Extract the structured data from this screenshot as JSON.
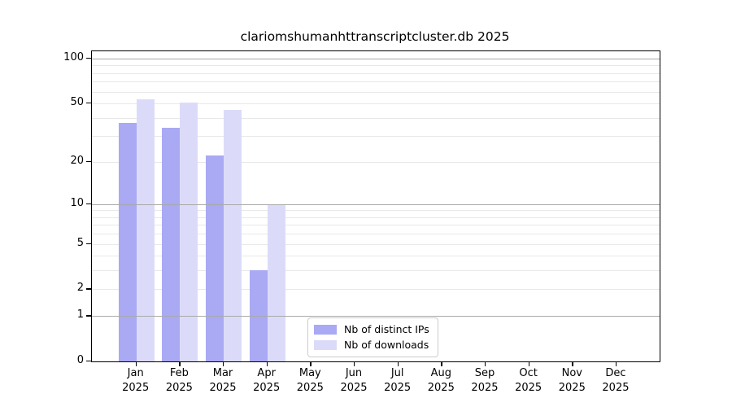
{
  "figure": {
    "title": "clariomshumanhttranscriptcluster.db 2025"
  },
  "chart_data": {
    "type": "bar",
    "title": "clariomshumanhttranscriptcluster.db 2025",
    "x": {
      "categories": [
        "Jan",
        "Feb",
        "Mar",
        "Apr",
        "May",
        "Jun",
        "Jul",
        "Aug",
        "Sep",
        "Oct",
        "Nov",
        "Dec"
      ],
      "year_label": "2025"
    },
    "series": [
      {
        "name": "Nb of distinct IPs",
        "color": "#a9a9f4",
        "values": [
          37,
          34,
          22,
          3,
          0,
          0,
          0,
          0,
          0,
          0,
          0,
          0
        ]
      },
      {
        "name": "Nb of downloads",
        "color": "#dbdbf9",
        "values": [
          53,
          51,
          45,
          10,
          0,
          0,
          0,
          0,
          0,
          0,
          0,
          0
        ]
      }
    ],
    "y_axis": {
      "scale": "log10(1+v)",
      "tick_labels": [
        100,
        50,
        20,
        10,
        5,
        2,
        1,
        0
      ],
      "dark_gridlines": [
        100,
        10,
        1
      ],
      "minor_gridlines": [
        90,
        80,
        70,
        60,
        40,
        30,
        9,
        8,
        7,
        6,
        4,
        3
      ],
      "ylim": [
        0,
        101
      ]
    },
    "legend_position": "bottom-center-inside",
    "grid": true,
    "colors": {
      "grid_light": "#e8e8e8",
      "grid_dark": "#a9a9a9",
      "axis": "#000000",
      "legend_border": "#cccccc"
    }
  }
}
